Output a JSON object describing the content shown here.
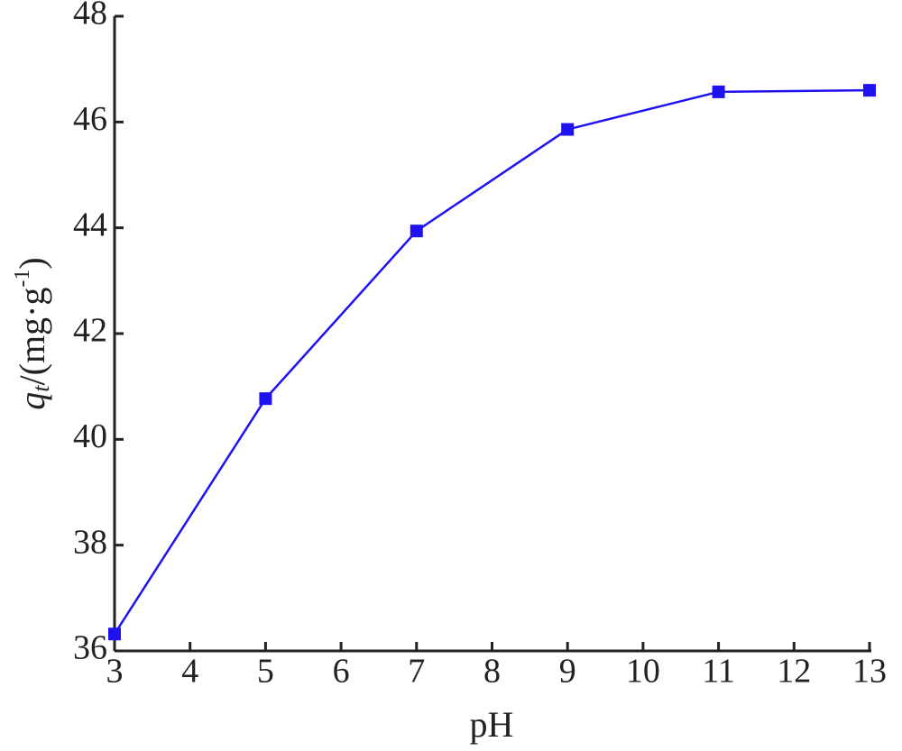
{
  "chart_data": {
    "type": "line",
    "xlabel": "pH",
    "ylabel": [
      "q",
      "t",
      "/(mg·g",
      "-1",
      ")"
    ],
    "x": [
      3,
      5,
      7,
      9,
      11,
      13
    ],
    "series": [
      {
        "color": "#1f12f0",
        "values": [
          36.32,
          40.77,
          43.94,
          45.86,
          46.57,
          46.6
        ]
      }
    ],
    "xlim": [
      3,
      13
    ],
    "xticks": [
      3,
      4,
      5,
      6,
      7,
      8,
      9,
      10,
      11,
      12,
      13
    ],
    "ylim": [
      36,
      48
    ],
    "yticks": [
      36,
      38,
      40,
      42,
      44,
      46,
      48
    ],
    "grid": false
  }
}
